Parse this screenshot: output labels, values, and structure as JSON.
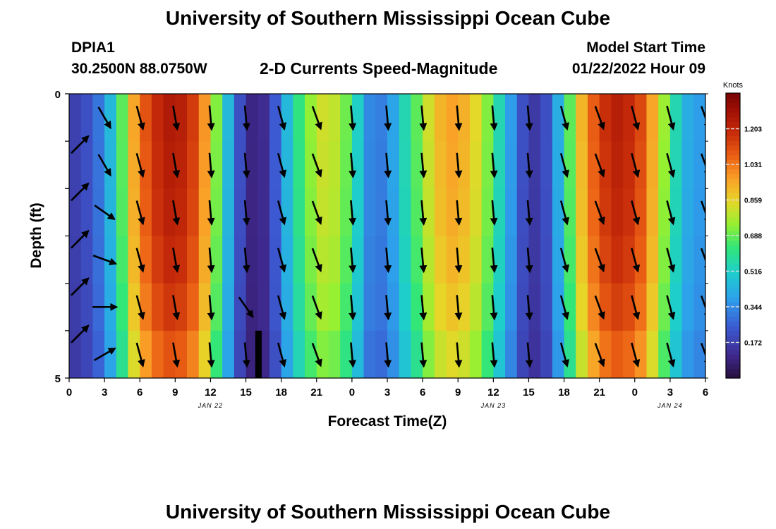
{
  "header": {
    "title": "University of Southern Mississippi Ocean Cube",
    "station": "DPIA1",
    "coords": "30.2500N  88.0750W",
    "subtitle": "2-D Currents Speed-Magnitude",
    "model_start_label": "Model Start Time",
    "model_start_value": "01/22/2022 Hour 09"
  },
  "footer": {
    "title": "University of Southern Mississippi Ocean Cube"
  },
  "chart_data": {
    "type": "heatmap",
    "title": "2-D Currents Speed-Magnitude",
    "xlabel": "Forecast Time(Z)",
    "ylabel": "Depth (ft)",
    "x_tick_labels": [
      "0",
      "3",
      "6",
      "9",
      "12",
      "15",
      "18",
      "21",
      "0",
      "3",
      "6",
      "9",
      "12",
      "15",
      "18",
      "21",
      "0",
      "3",
      "6"
    ],
    "y_tick_labels": [
      "0",
      "5"
    ],
    "date_labels": [
      {
        "text": "JAN 22",
        "tick_index": 4
      },
      {
        "text": "JAN 23",
        "tick_index": 12
      },
      {
        "text": "JAN 24",
        "tick_index": 17
      }
    ],
    "x_hours": [
      0,
      54
    ],
    "depth_range_ft": [
      0,
      5
    ],
    "colorbar": {
      "label": "Knots",
      "ticks": [
        "1.203",
        "1.031",
        "0.859",
        "0.688",
        "0.516",
        "0.344",
        "0.172"
      ],
      "range": [
        0.0,
        1.375
      ]
    },
    "speed_profile": {
      "hours": [
        0,
        1,
        2,
        3,
        4,
        5,
        6,
        7,
        8,
        9,
        10,
        11,
        12,
        13,
        14,
        15,
        16,
        17,
        18,
        19,
        20,
        21,
        22,
        23,
        24,
        25,
        26,
        27,
        28,
        29,
        30,
        31,
        32,
        33,
        34,
        35,
        36,
        37,
        38,
        39,
        40,
        41,
        42,
        43,
        44,
        45,
        46,
        47,
        48,
        49,
        50,
        51,
        52,
        53,
        54
      ],
      "speeds": [
        0.18,
        0.22,
        0.3,
        0.45,
        0.68,
        0.95,
        1.1,
        1.2,
        1.25,
        1.23,
        1.15,
        0.98,
        0.72,
        0.45,
        0.22,
        0.1,
        0.12,
        0.25,
        0.45,
        0.62,
        0.74,
        0.82,
        0.8,
        0.7,
        0.52,
        0.34,
        0.32,
        0.4,
        0.55,
        0.68,
        0.82,
        0.92,
        0.96,
        0.93,
        0.85,
        0.72,
        0.55,
        0.38,
        0.22,
        0.16,
        0.22,
        0.42,
        0.68,
        0.92,
        1.08,
        1.18,
        1.23,
        1.2,
        1.12,
        0.95,
        0.75,
        0.55,
        0.42,
        0.38,
        0.34
      ]
    },
    "depth_factor": [
      1.0,
      0.99,
      0.98,
      0.96,
      0.93,
      0.88
    ],
    "arrows": {
      "surface_dirs_deg": [
        45,
        150,
        165,
        170,
        175,
        175,
        165,
        160,
        175,
        175,
        175,
        175,
        175,
        175,
        165,
        160,
        165,
        165,
        160
      ],
      "depth_overrides": [
        {
          "col": 0,
          "row": 0,
          "dir": null
        },
        {
          "col": 1,
          "row": 2,
          "dir": 125
        },
        {
          "col": 1,
          "row": 3,
          "dir": 110
        },
        {
          "col": 1,
          "row": 4,
          "dir": 90
        },
        {
          "col": 1,
          "row": 5,
          "dir": 60
        },
        {
          "col": 5,
          "row": 4,
          "dir": 145
        }
      ]
    }
  }
}
